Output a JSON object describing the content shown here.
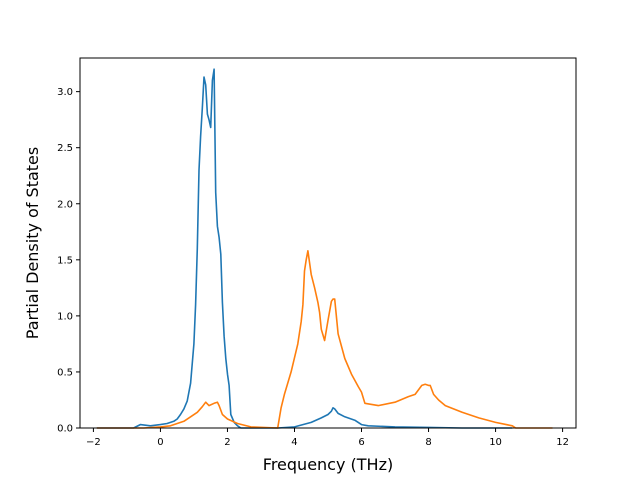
{
  "chart_data": {
    "type": "line",
    "title": "",
    "xlabel": "Frequency (THz)",
    "ylabel": "Partial Density of States",
    "xlim": [
      -2.4,
      12.4
    ],
    "ylim": [
      0,
      3.3
    ],
    "xticks": [
      -2,
      0,
      2,
      4,
      6,
      8,
      10,
      12
    ],
    "xtick_labels": [
      "−2",
      "0",
      "2",
      "4",
      "6",
      "8",
      "10",
      "12"
    ],
    "yticks": [
      0,
      0.5,
      1.0,
      1.5,
      2.0,
      2.5,
      3.0
    ],
    "ytick_labels": [
      "0.0",
      "0.5",
      "1.0",
      "1.5",
      "2.0",
      "2.5",
      "3.0"
    ],
    "grid": false,
    "legend": "none",
    "series": [
      {
        "color": "#1f77b4",
        "x": [
          -1.9,
          -0.8,
          -0.6,
          -0.3,
          0.0,
          0.2,
          0.4,
          0.5,
          0.6,
          0.7,
          0.8,
          0.9,
          1.0,
          1.05,
          1.1,
          1.15,
          1.2,
          1.25,
          1.3,
          1.35,
          1.4,
          1.45,
          1.5,
          1.55,
          1.6,
          1.65,
          1.7,
          1.75,
          1.8,
          1.85,
          1.9,
          1.95,
          2.0,
          2.05,
          2.1,
          2.2,
          2.3,
          2.4,
          2.5,
          2.65,
          2.8,
          3.5,
          4.0,
          4.5,
          4.8,
          5.0,
          5.1,
          5.15,
          5.2,
          5.3,
          5.5,
          5.8,
          6.0,
          6.2,
          7.0,
          8.0,
          9.0,
          10.0,
          10.5
        ],
        "y": [
          0.0,
          0.0,
          0.03,
          0.02,
          0.03,
          0.04,
          0.06,
          0.08,
          0.12,
          0.17,
          0.24,
          0.4,
          0.75,
          1.1,
          1.6,
          2.3,
          2.6,
          2.85,
          3.13,
          3.06,
          2.8,
          2.75,
          2.68,
          3.1,
          3.2,
          2.1,
          1.8,
          1.7,
          1.55,
          1.12,
          0.82,
          0.62,
          0.48,
          0.38,
          0.12,
          0.05,
          0.02,
          0.0,
          0.0,
          0.0,
          0.0,
          0.0,
          0.01,
          0.05,
          0.09,
          0.12,
          0.15,
          0.18,
          0.17,
          0.13,
          0.1,
          0.07,
          0.03,
          0.02,
          0.01,
          0.005,
          0.0,
          0.0,
          0.0
        ]
      },
      {
        "color": "#ff7f0e",
        "x": [
          -1.9,
          -0.5,
          0.0,
          0.3,
          0.5,
          0.7,
          0.9,
          1.1,
          1.25,
          1.35,
          1.45,
          1.6,
          1.7,
          1.75,
          1.85,
          2.0,
          2.3,
          2.7,
          3.5,
          3.6,
          3.7,
          3.9,
          4.1,
          4.2,
          4.25,
          4.3,
          4.35,
          4.4,
          4.5,
          4.6,
          4.7,
          4.75,
          4.8,
          4.9,
          5.0,
          5.1,
          5.15,
          5.2,
          5.3,
          5.5,
          5.7,
          5.9,
          6.0,
          6.1,
          6.5,
          7.0,
          7.4,
          7.6,
          7.8,
          7.9,
          8.0,
          8.05,
          8.15,
          8.3,
          8.5,
          9.0,
          9.5,
          10.0,
          10.5,
          10.6,
          11.0,
          11.7
        ],
        "y": [
          0.0,
          0.0,
          0.01,
          0.02,
          0.04,
          0.06,
          0.1,
          0.14,
          0.19,
          0.23,
          0.2,
          0.22,
          0.23,
          0.2,
          0.12,
          0.08,
          0.04,
          0.01,
          0.0,
          0.18,
          0.3,
          0.5,
          0.75,
          0.95,
          1.1,
          1.4,
          1.5,
          1.58,
          1.37,
          1.25,
          1.12,
          1.03,
          0.88,
          0.78,
          0.96,
          1.13,
          1.15,
          1.15,
          0.84,
          0.62,
          0.48,
          0.37,
          0.32,
          0.22,
          0.2,
          0.23,
          0.28,
          0.3,
          0.38,
          0.39,
          0.38,
          0.38,
          0.3,
          0.25,
          0.2,
          0.14,
          0.09,
          0.05,
          0.02,
          0.0,
          0.0,
          0.0
        ]
      }
    ]
  }
}
